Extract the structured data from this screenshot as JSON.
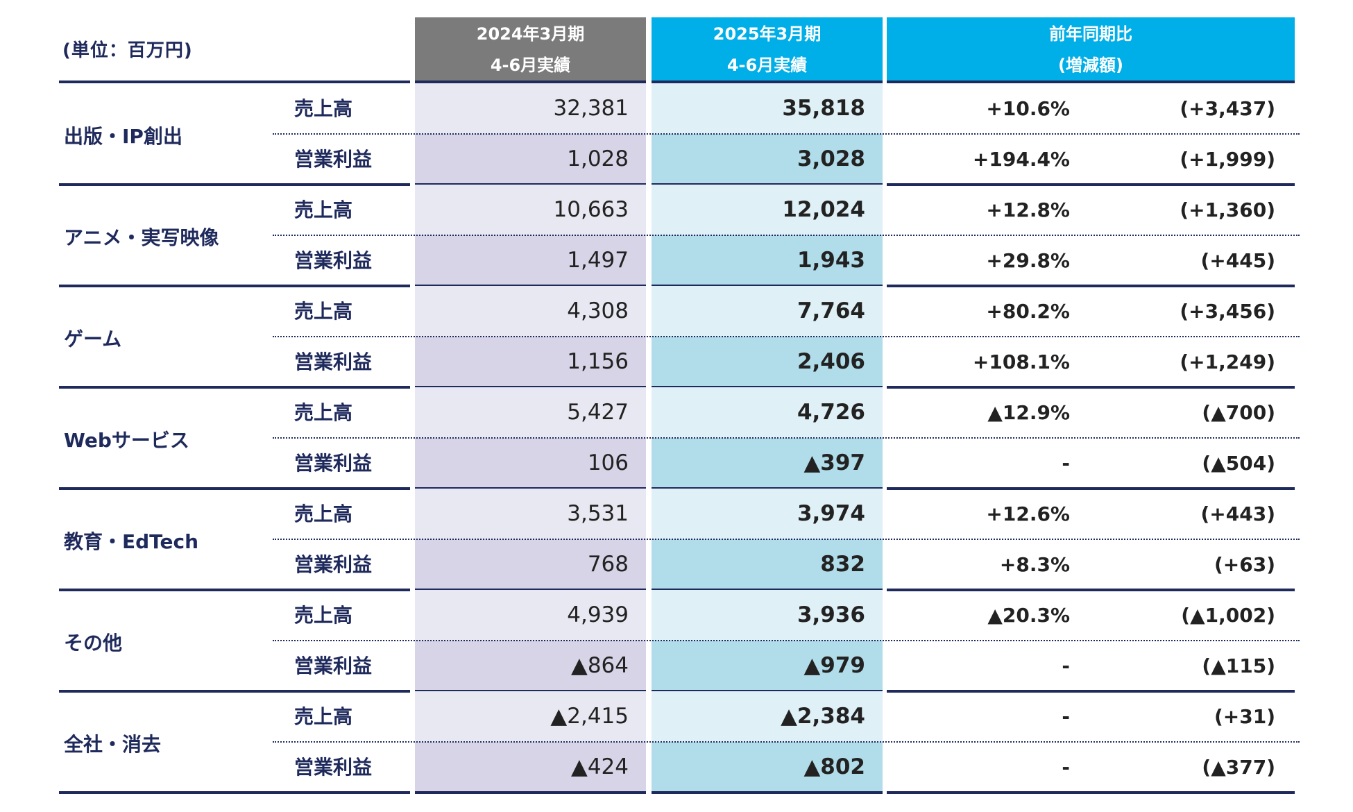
{
  "unit_label": "(単位：百万円)",
  "headers": {
    "col1_line1": "2024年3月期",
    "col1_line2": "4-6月実績",
    "col2_line1": "2025年3月期",
    "col2_line2": "4-6月実績",
    "col3_line1": "前年同期比",
    "col3_line2": "(増減額)"
  },
  "segments": [
    {
      "name": "出版・IP創出",
      "rows": [
        {
          "metric": "売上高",
          "fy2024": "32,381",
          "fy2025": "35,818",
          "pct": "+10.6%",
          "diff": "(+3,437)"
        },
        {
          "metric": "営業利益",
          "fy2024": "1,028",
          "fy2025": "3,028",
          "pct": "+194.4%",
          "diff": "(+1,999)"
        }
      ]
    },
    {
      "name": "アニメ・実写映像",
      "rows": [
        {
          "metric": "売上高",
          "fy2024": "10,663",
          "fy2025": "12,024",
          "pct": "+12.8%",
          "diff": "(+1,360)"
        },
        {
          "metric": "営業利益",
          "fy2024": "1,497",
          "fy2025": "1,943",
          "pct": "+29.8%",
          "diff": "(+445)"
        }
      ]
    },
    {
      "name": "ゲーム",
      "rows": [
        {
          "metric": "売上高",
          "fy2024": "4,308",
          "fy2025": "7,764",
          "pct": "+80.2%",
          "diff": "(+3,456)"
        },
        {
          "metric": "営業利益",
          "fy2024": "1,156",
          "fy2025": "2,406",
          "pct": "+108.1%",
          "diff": "(+1,249)"
        }
      ]
    },
    {
      "name": "Webサービス",
      "rows": [
        {
          "metric": "売上高",
          "fy2024": "5,427",
          "fy2025": "4,726",
          "pct": "▲12.9%",
          "diff": "(▲700)"
        },
        {
          "metric": "営業利益",
          "fy2024": "106",
          "fy2025": "▲397",
          "pct": "-",
          "diff": "(▲504)"
        }
      ]
    },
    {
      "name": "教育・EdTech",
      "rows": [
        {
          "metric": "売上高",
          "fy2024": "3,531",
          "fy2025": "3,974",
          "pct": "+12.6%",
          "diff": "(+443)"
        },
        {
          "metric": "営業利益",
          "fy2024": "768",
          "fy2025": "832",
          "pct": "+8.3%",
          "diff": "(+63)"
        }
      ]
    },
    {
      "name": "その他",
      "rows": [
        {
          "metric": "売上高",
          "fy2024": "4,939",
          "fy2025": "3,936",
          "pct": "▲20.3%",
          "diff": "(▲1,002)"
        },
        {
          "metric": "営業利益",
          "fy2024": "▲864",
          "fy2025": "▲979",
          "pct": "-",
          "diff": "(▲115)"
        }
      ]
    },
    {
      "name": "全社・消去",
      "rows": [
        {
          "metric": "売上高",
          "fy2024": "▲2,415",
          "fy2025": "▲2,384",
          "pct": "-",
          "diff": "(+31)"
        },
        {
          "metric": "営業利益",
          "fy2024": "▲424",
          "fy2025": "▲802",
          "pct": "-",
          "diff": "(▲377)"
        }
      ]
    }
  ]
}
